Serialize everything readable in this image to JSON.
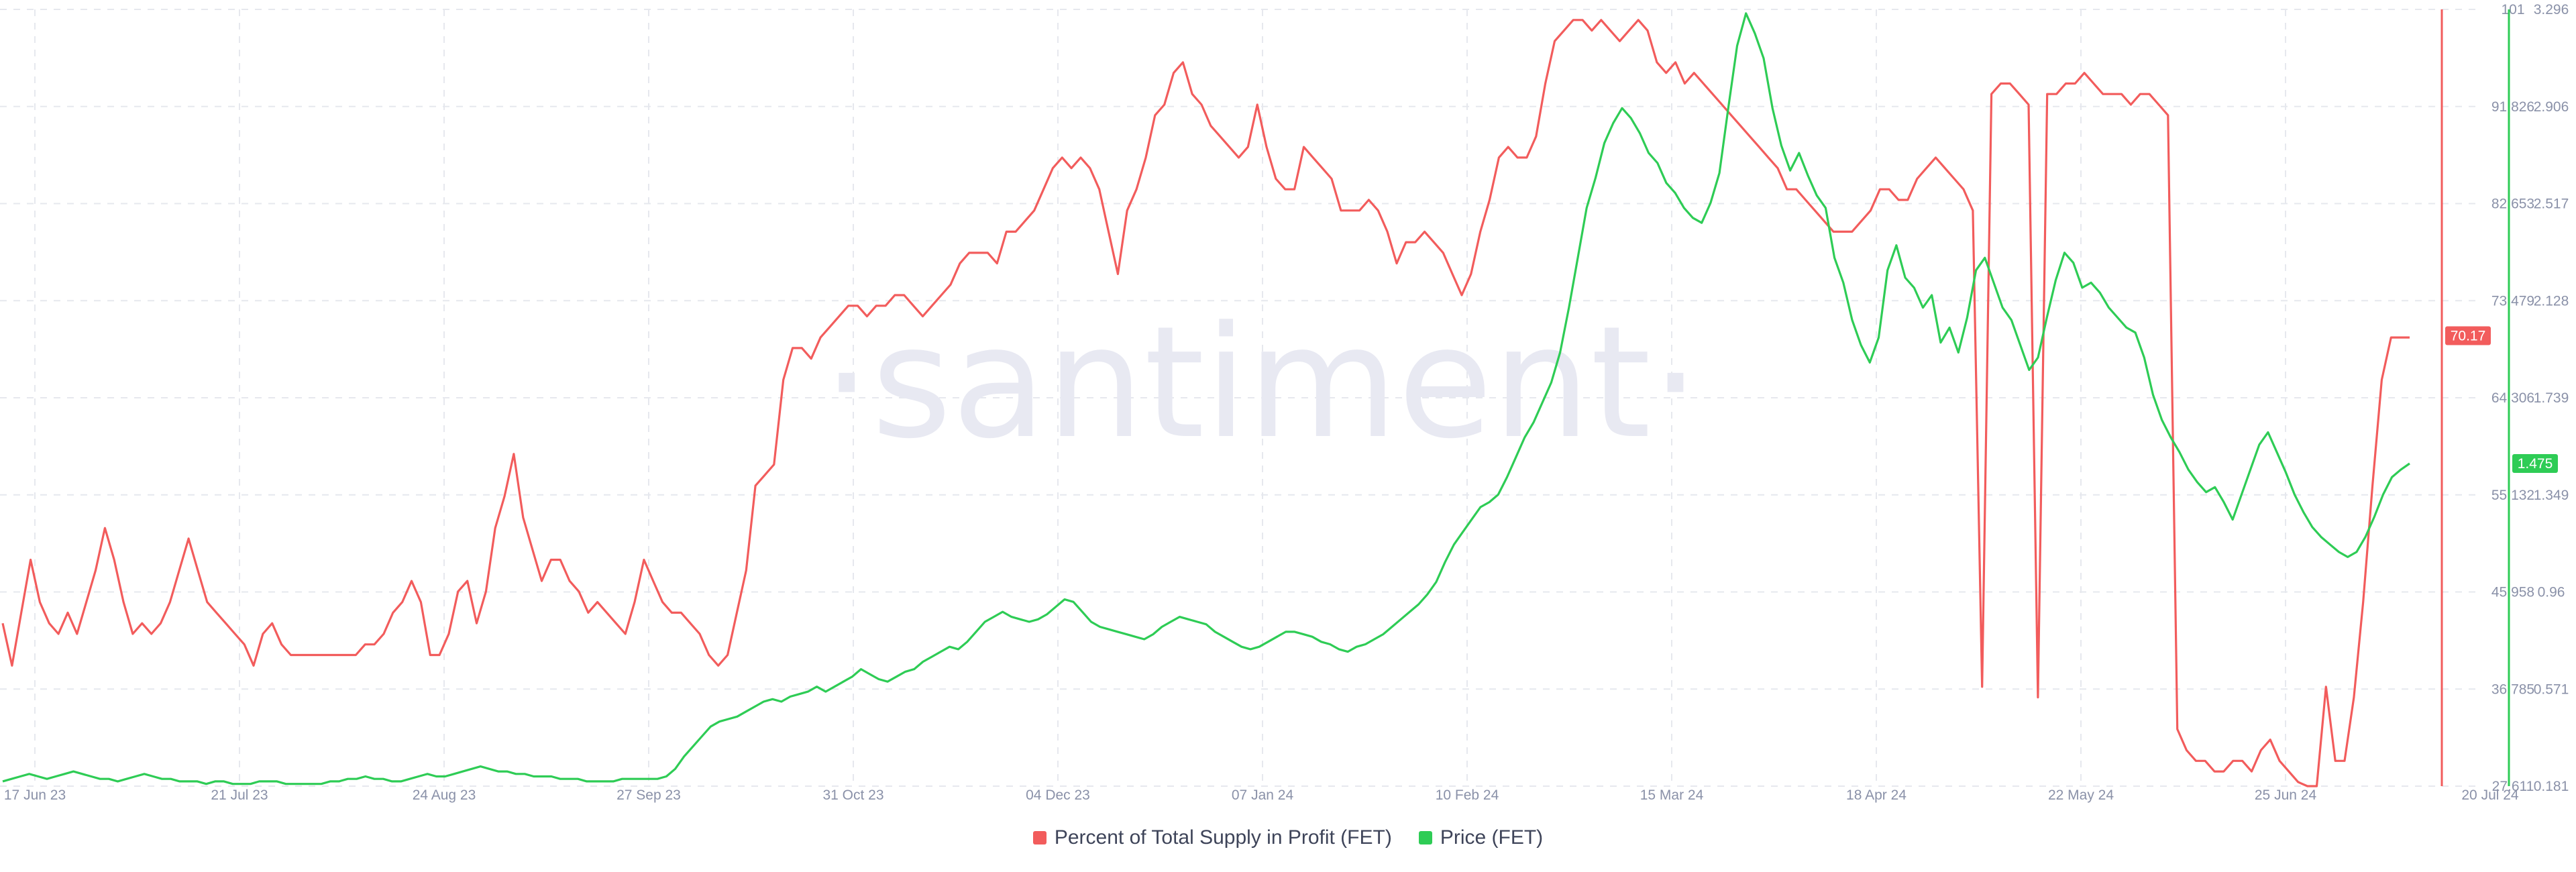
{
  "watermark": "·santiment·",
  "colors": {
    "profit": "#f25c5c",
    "price": "#2ecc55",
    "grid": "#e6e8ee",
    "badge_text": "#ffffff"
  },
  "chart_data": {
    "type": "line",
    "x_tick_labels": [
      "17 Jun 23",
      "21 Jul 23",
      "24 Aug 23",
      "27 Sep 23",
      "31 Oct 23",
      "04 Dec 23",
      "07 Jan 24",
      "10 Feb 24",
      "15 Mar 24",
      "18 Apr 24",
      "22 May 24",
      "25 Jun 24",
      "20 Jul 24"
    ],
    "grid": true,
    "legend_position": "bottom-center",
    "left_axis": {
      "series": "Percent of Total Supply in Profit (FET)",
      "ticks": [
        "101",
        "91.826",
        "82.653",
        "73.479",
        "64.306",
        "55.132",
        "45.958",
        "36.785",
        "27.611"
      ],
      "range": [
        27.611,
        101
      ]
    },
    "right_axis": {
      "series": "Price (FET)",
      "ticks": [
        "3.296",
        "2.906",
        "2.517",
        "2.128",
        "1.739",
        "1.349",
        "0.96",
        "0.571",
        "0.181"
      ],
      "range": [
        0.181,
        3.296
      ]
    },
    "current_values": {
      "profit": "70.17",
      "price": "1.475"
    },
    "series": [
      {
        "name": "Percent of Total Supply in Profit (FET)",
        "color": "#f25c5c",
        "axis": "left",
        "values": [
          43,
          39,
          44,
          49,
          45,
          43,
          42,
          44,
          42,
          45,
          48,
          52,
          49,
          45,
          42,
          43,
          42,
          43,
          45,
          48,
          51,
          48,
          45,
          44,
          43,
          42,
          41,
          39,
          42,
          43,
          41,
          40,
          40,
          40,
          40,
          40,
          40,
          40,
          40,
          41,
          41,
          42,
          44,
          45,
          47,
          45,
          40,
          40,
          42,
          46,
          47,
          43,
          46,
          52,
          55,
          59,
          53,
          50,
          47,
          49,
          49,
          47,
          46,
          44,
          45,
          44,
          43,
          42,
          45,
          49,
          47,
          45,
          44,
          44,
          43,
          42,
          40,
          39,
          40,
          44,
          48,
          56,
          57,
          58,
          66,
          69,
          69,
          68,
          70,
          71,
          72,
          73,
          73,
          72,
          73,
          73,
          74,
          74,
          73,
          72,
          73,
          74,
          75,
          77,
          78,
          78,
          78,
          77,
          80,
          80,
          81,
          82,
          84,
          86,
          87,
          86,
          87,
          86,
          84,
          80,
          76,
          82,
          84,
          87,
          91,
          92,
          95,
          96,
          93,
          92,
          90,
          89,
          88,
          87,
          88,
          92,
          88,
          85,
          84,
          84,
          88,
          87,
          86,
          85,
          82,
          82,
          82,
          83,
          82,
          80,
          77,
          79,
          79,
          80,
          79,
          78,
          76,
          74,
          76,
          80,
          83,
          87,
          88,
          87,
          87,
          89,
          94,
          98,
          99,
          100,
          100,
          99,
          100,
          99,
          98,
          99,
          100,
          99,
          96,
          95,
          96,
          94,
          95,
          94,
          93,
          92,
          91,
          90,
          89,
          88,
          87,
          86,
          84,
          84,
          83,
          82,
          81,
          80,
          80,
          80,
          81,
          82,
          84,
          84,
          83,
          83,
          85,
          86,
          87,
          86,
          85,
          84,
          82,
          37,
          93,
          94,
          94,
          93,
          92,
          36,
          93,
          93,
          94,
          94,
          95,
          94,
          93,
          93,
          93,
          92,
          93,
          93,
          92,
          91,
          33,
          31,
          30,
          30,
          29,
          29,
          30,
          30,
          29,
          31,
          32,
          30,
          29,
          28,
          27,
          27,
          37,
          30,
          30,
          36,
          45,
          56,
          66,
          70,
          70,
          70
        ]
      },
      {
        "name": "Price (FET)",
        "color": "#2ecc55",
        "axis": "right",
        "values": [
          0.2,
          0.21,
          0.22,
          0.23,
          0.22,
          0.21,
          0.22,
          0.23,
          0.24,
          0.23,
          0.22,
          0.21,
          0.21,
          0.2,
          0.21,
          0.22,
          0.23,
          0.22,
          0.21,
          0.21,
          0.2,
          0.2,
          0.2,
          0.19,
          0.2,
          0.2,
          0.19,
          0.19,
          0.19,
          0.2,
          0.2,
          0.2,
          0.19,
          0.19,
          0.19,
          0.19,
          0.19,
          0.2,
          0.2,
          0.21,
          0.21,
          0.22,
          0.21,
          0.21,
          0.2,
          0.2,
          0.21,
          0.22,
          0.23,
          0.22,
          0.22,
          0.23,
          0.24,
          0.25,
          0.26,
          0.25,
          0.24,
          0.24,
          0.23,
          0.23,
          0.22,
          0.22,
          0.22,
          0.21,
          0.21,
          0.21,
          0.2,
          0.2,
          0.2,
          0.2,
          0.21,
          0.21,
          0.21,
          0.21,
          0.21,
          0.22,
          0.25,
          0.3,
          0.34,
          0.38,
          0.42,
          0.44,
          0.45,
          0.46,
          0.48,
          0.5,
          0.52,
          0.53,
          0.52,
          0.54,
          0.55,
          0.56,
          0.58,
          0.56,
          0.58,
          0.6,
          0.62,
          0.65,
          0.63,
          0.61,
          0.6,
          0.62,
          0.64,
          0.65,
          0.68,
          0.7,
          0.72,
          0.74,
          0.73,
          0.76,
          0.8,
          0.84,
          0.86,
          0.88,
          0.86,
          0.85,
          0.84,
          0.85,
          0.87,
          0.9,
          0.93,
          0.92,
          0.88,
          0.84,
          0.82,
          0.81,
          0.8,
          0.79,
          0.78,
          0.77,
          0.79,
          0.82,
          0.84,
          0.86,
          0.85,
          0.84,
          0.83,
          0.8,
          0.78,
          0.76,
          0.74,
          0.73,
          0.74,
          0.76,
          0.78,
          0.8,
          0.8,
          0.79,
          0.78,
          0.76,
          0.75,
          0.73,
          0.72,
          0.74,
          0.75,
          0.77,
          0.79,
          0.82,
          0.85,
          0.88,
          0.91,
          0.95,
          1,
          1.08,
          1.15,
          1.2,
          1.25,
          1.3,
          1.32,
          1.35,
          1.42,
          1.5,
          1.58,
          1.64,
          1.72,
          1.8,
          1.92,
          2.1,
          2.3,
          2.5,
          2.62,
          2.76,
          2.84,
          2.9,
          2.86,
          2.8,
          2.72,
          2.68,
          2.6,
          2.56,
          2.5,
          2.46,
          2.44,
          2.52,
          2.64,
          2.9,
          3.15,
          3.28,
          3.2,
          3.1,
          2.9,
          2.75,
          2.65,
          2.72,
          2.63,
          2.55,
          2.5,
          2.3,
          2.2,
          2.05,
          1.95,
          1.88,
          1.98,
          2.25,
          2.35,
          2.22,
          2.18,
          2.1,
          2.15,
          1.96,
          2.02,
          1.92,
          2.06,
          2.25,
          2.3,
          2.2,
          2.1,
          2.05,
          1.95,
          1.85,
          1.9,
          2.06,
          2.21,
          2.32,
          2.28,
          2.18,
          2.2,
          2.16,
          2.1,
          2.06,
          2.02,
          2,
          1.9,
          1.75,
          1.65,
          1.58,
          1.52,
          1.45,
          1.4,
          1.36,
          1.38,
          1.32,
          1.25,
          1.35,
          1.45,
          1.55,
          1.6,
          1.52,
          1.44,
          1.35,
          1.28,
          1.22,
          1.18,
          1.15,
          1.12,
          1.1,
          1.12,
          1.18,
          1.26,
          1.35,
          1.42,
          1.45,
          1.475
        ]
      }
    ]
  },
  "legend": {
    "profit_label": "Percent of Total Supply in Profit (FET)",
    "price_label": "Price (FET)"
  }
}
